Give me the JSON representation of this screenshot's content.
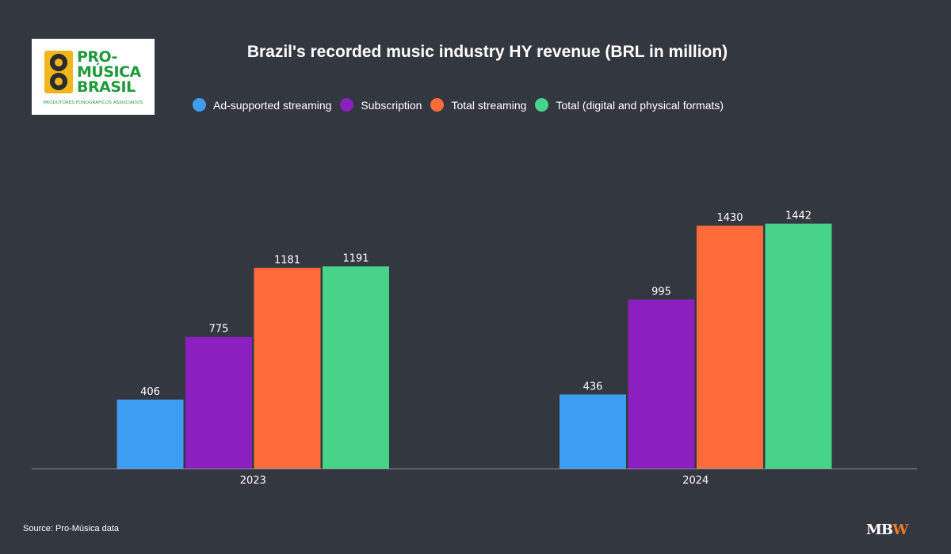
{
  "logo": {
    "line1": "PRO-",
    "line2": "MÚSICA",
    "line3": "BRASIL",
    "tagline": "PRODUTORES FONOGRÁFICOS ASSOCIADOS",
    "text_color": "#1f9a3c",
    "speaker_color": "#f2b61c"
  },
  "footer": {
    "source": "Source: Pro-Música data",
    "brand_mb": "MB",
    "brand_w": "W",
    "brand_w_color": "#f47a20"
  },
  "chart_data": {
    "type": "bar",
    "title": "Brazil's recorded music industry HY revenue (BRL in million)",
    "xlabel": "",
    "ylabel": "",
    "categories": [
      "2023",
      "2024"
    ],
    "series": [
      {
        "name": "Ad-supported streaming",
        "color": "#3d9df3",
        "values": [
          406,
          436
        ]
      },
      {
        "name": "Subscription",
        "color": "#8b20bf",
        "values": [
          775,
          995
        ]
      },
      {
        "name": "Total streaming",
        "color": "#ff6b3b",
        "values": [
          1181,
          1430
        ]
      },
      {
        "name": "Total (digital and physical formats)",
        "color": "#46d48b",
        "values": [
          1191,
          1442
        ]
      }
    ],
    "ylim": [
      0,
      2200
    ],
    "grid": false,
    "legend_position": "top",
    "background": "#333840",
    "axis_color": "#8a8f96"
  }
}
